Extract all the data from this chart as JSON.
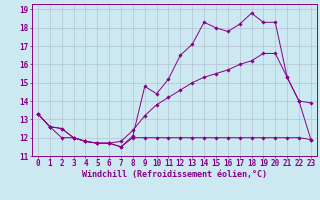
{
  "bg_color": "#cce8f0",
  "line_color": "#880088",
  "grid_color": "#b0b8cc",
  "xlabel": "Windchill (Refroidissement éolien,°C)",
  "xlabel_fontsize": 6.0,
  "tick_fontsize": 5.5,
  "xlim": [
    -0.5,
    23.5
  ],
  "ylim": [
    11,
    19.3
  ],
  "yticks": [
    11,
    12,
    13,
    14,
    15,
    16,
    17,
    18,
    19
  ],
  "xticks": [
    0,
    1,
    2,
    3,
    4,
    5,
    6,
    7,
    8,
    9,
    10,
    11,
    12,
    13,
    14,
    15,
    16,
    17,
    18,
    19,
    20,
    21,
    22,
    23
  ],
  "series1_x": [
    0,
    1,
    2,
    3,
    4,
    5,
    6,
    7,
    8,
    9,
    10,
    11,
    12,
    13,
    14,
    15,
    16,
    17,
    18,
    19,
    20,
    21,
    22,
    23
  ],
  "series1_y": [
    13.3,
    12.6,
    12.5,
    12.0,
    11.8,
    11.7,
    11.7,
    11.8,
    12.4,
    13.2,
    13.8,
    14.2,
    14.6,
    15.0,
    15.3,
    15.5,
    15.7,
    16.0,
    16.2,
    16.6,
    16.6,
    15.3,
    14.0,
    13.9
  ],
  "series2_x": [
    0,
    1,
    2,
    3,
    4,
    5,
    6,
    7,
    8,
    9,
    10,
    11,
    12,
    13,
    14,
    15,
    16,
    17,
    18,
    19,
    20,
    21,
    22,
    23
  ],
  "series2_y": [
    13.3,
    12.6,
    12.5,
    12.0,
    11.8,
    11.7,
    11.7,
    11.5,
    12.1,
    14.8,
    14.4,
    15.2,
    16.5,
    17.1,
    18.3,
    18.0,
    17.8,
    18.2,
    18.8,
    18.3,
    18.3,
    15.3,
    14.0,
    11.9
  ],
  "series3_x": [
    0,
    1,
    2,
    3,
    4,
    5,
    6,
    7,
    8,
    9,
    10,
    11,
    12,
    13,
    14,
    15,
    16,
    17,
    18,
    19,
    20,
    21,
    22,
    23
  ],
  "series3_y": [
    13.3,
    12.6,
    12.0,
    12.0,
    11.8,
    11.7,
    11.7,
    11.5,
    12.0,
    12.0,
    12.0,
    12.0,
    12.0,
    12.0,
    12.0,
    12.0,
    12.0,
    12.0,
    12.0,
    12.0,
    12.0,
    12.0,
    12.0,
    11.9
  ]
}
